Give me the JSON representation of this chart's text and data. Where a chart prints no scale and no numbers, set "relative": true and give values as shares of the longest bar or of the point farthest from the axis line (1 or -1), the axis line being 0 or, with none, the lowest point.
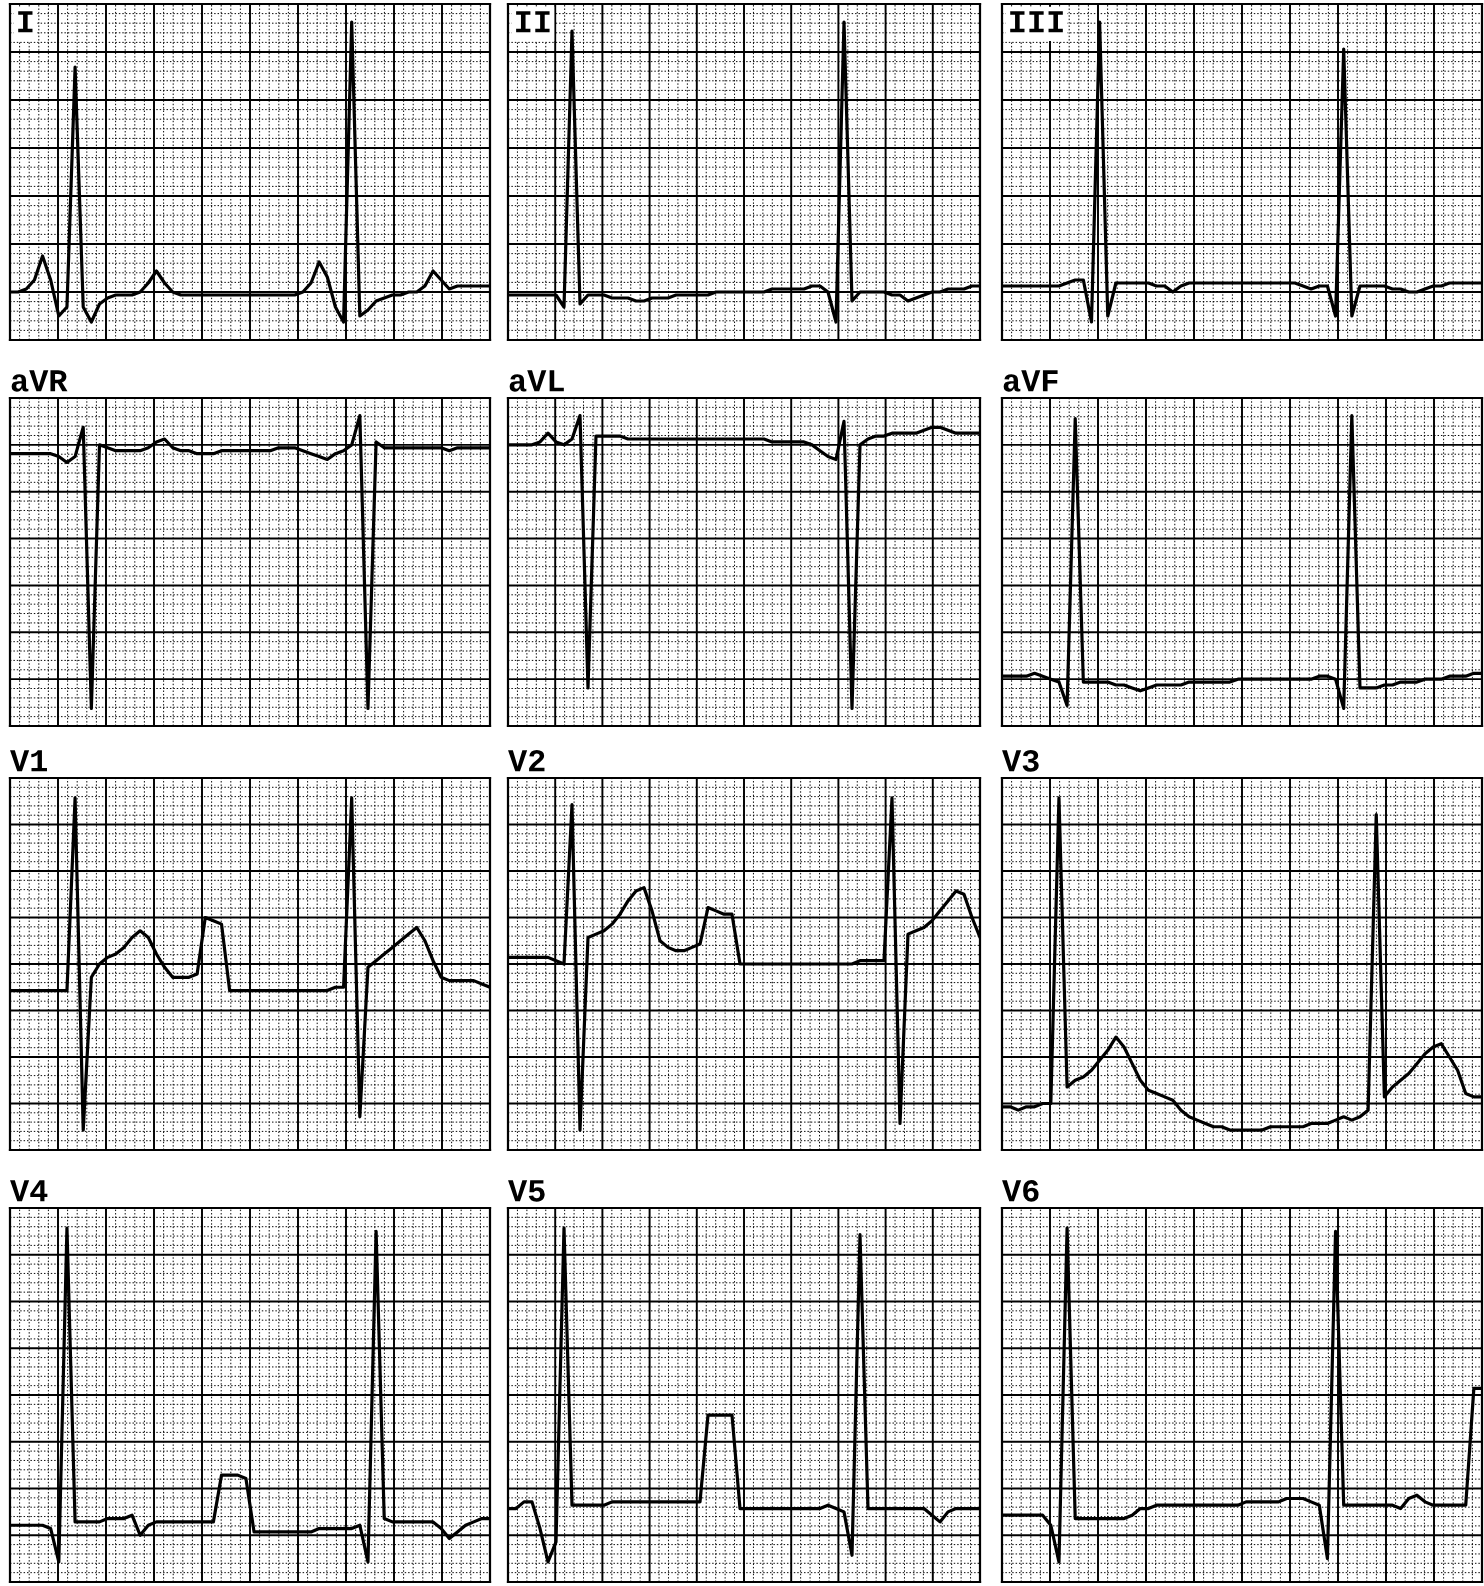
{
  "chart_data": [
    {
      "type": "line",
      "title": "I",
      "relative": true,
      "grid": true,
      "color": "#000000",
      "categories": [
        null,
        null,
        null,
        null,
        null,
        null,
        null,
        null,
        null,
        null,
        null,
        null,
        null,
        null,
        null,
        null,
        null,
        null,
        null,
        null,
        null,
        null,
        null,
        null,
        null,
        null,
        null,
        null,
        null,
        null,
        null,
        null,
        null,
        null,
        null,
        null,
        null,
        null,
        null,
        null,
        null,
        null,
        null,
        null,
        null,
        null,
        null,
        null,
        null,
        null,
        null,
        null,
        null,
        null,
        null,
        null,
        null,
        null,
        null,
        null
      ],
      "values": [
        0.1,
        0.1,
        0.11,
        0.14,
        0.22,
        0.14,
        0.02,
        0.05,
        0.85,
        0.05,
        0.0,
        0.06,
        0.08,
        0.09,
        0.09,
        0.09,
        0.1,
        0.13,
        0.17,
        0.13,
        0.1,
        0.09,
        0.09,
        0.09,
        0.09,
        0.09,
        0.09,
        0.09,
        0.09,
        0.09,
        0.09,
        0.09,
        0.09,
        0.09,
        0.09,
        0.09,
        0.1,
        0.13,
        0.2,
        0.15,
        0.05,
        0.0,
        1.0,
        0.02,
        0.04,
        0.07,
        0.08,
        0.09,
        0.09,
        0.1,
        0.1,
        0.12,
        0.17,
        0.14,
        0.11,
        0.12,
        0.12,
        0.12,
        0.12,
        0.12
      ]
    },
    {
      "type": "line",
      "title": "II",
      "relative": true,
      "grid": true,
      "color": "#000000",
      "categories": [
        null,
        null,
        null,
        null,
        null,
        null,
        null,
        null,
        null,
        null,
        null,
        null,
        null,
        null,
        null,
        null,
        null,
        null,
        null,
        null,
        null,
        null,
        null,
        null,
        null,
        null,
        null,
        null,
        null,
        null,
        null,
        null,
        null,
        null,
        null,
        null,
        null,
        null,
        null,
        null,
        null,
        null,
        null,
        null,
        null,
        null,
        null,
        null,
        null,
        null,
        null,
        null,
        null,
        null,
        null,
        null,
        null,
        null,
        null,
        null
      ],
      "values": [
        0.09,
        0.09,
        0.09,
        0.09,
        0.09,
        0.09,
        0.09,
        0.05,
        0.97,
        0.06,
        0.09,
        0.09,
        0.09,
        0.08,
        0.08,
        0.08,
        0.07,
        0.07,
        0.08,
        0.08,
        0.08,
        0.09,
        0.09,
        0.09,
        0.09,
        0.09,
        0.1,
        0.1,
        0.1,
        0.1,
        0.1,
        0.1,
        0.1,
        0.11,
        0.11,
        0.11,
        0.11,
        0.11,
        0.12,
        0.12,
        0.1,
        0.0,
        1.0,
        0.07,
        0.1,
        0.1,
        0.1,
        0.1,
        0.09,
        0.09,
        0.07,
        0.08,
        0.09,
        0.1,
        0.1,
        0.11,
        0.11,
        0.11,
        0.12,
        0.12
      ]
    },
    {
      "type": "line",
      "title": "III",
      "relative": true,
      "grid": true,
      "color": "#000000",
      "categories": [
        null,
        null,
        null,
        null,
        null,
        null,
        null,
        null,
        null,
        null,
        null,
        null,
        null,
        null,
        null,
        null,
        null,
        null,
        null,
        null,
        null,
        null,
        null,
        null,
        null,
        null,
        null,
        null,
        null,
        null,
        null,
        null,
        null,
        null,
        null,
        null,
        null,
        null,
        null,
        null,
        null,
        null,
        null,
        null,
        null,
        null,
        null,
        null,
        null,
        null,
        null,
        null,
        null,
        null,
        null,
        null,
        null,
        null,
        null,
        null
      ],
      "values": [
        0.12,
        0.12,
        0.12,
        0.12,
        0.12,
        0.12,
        0.12,
        0.12,
        0.13,
        0.14,
        0.14,
        0.0,
        1.0,
        0.02,
        0.13,
        0.13,
        0.13,
        0.13,
        0.13,
        0.12,
        0.12,
        0.1,
        0.12,
        0.13,
        0.13,
        0.13,
        0.13,
        0.13,
        0.13,
        0.13,
        0.13,
        0.13,
        0.13,
        0.13,
        0.13,
        0.13,
        0.13,
        0.12,
        0.11,
        0.12,
        0.12,
        0.02,
        0.91,
        0.02,
        0.12,
        0.12,
        0.12,
        0.12,
        0.11,
        0.11,
        0.1,
        0.1,
        0.11,
        0.12,
        0.12,
        0.13,
        0.13,
        0.13,
        0.13,
        0.13
      ]
    },
    {
      "type": "line",
      "title": "aVR",
      "relative": true,
      "grid": true,
      "color": "#000000",
      "categories": [
        null,
        null,
        null,
        null,
        null,
        null,
        null,
        null,
        null,
        null,
        null,
        null,
        null,
        null,
        null,
        null,
        null,
        null,
        null,
        null,
        null,
        null,
        null,
        null,
        null,
        null,
        null,
        null,
        null,
        null,
        null,
        null,
        null,
        null,
        null,
        null,
        null,
        null,
        null,
        null,
        null,
        null,
        null,
        null,
        null,
        null,
        null,
        null,
        null,
        null,
        null,
        null,
        null,
        null,
        null,
        null,
        null,
        null,
        null,
        null
      ],
      "values": [
        0.87,
        0.87,
        0.87,
        0.87,
        0.87,
        0.87,
        0.86,
        0.84,
        0.86,
        0.96,
        0.0,
        0.9,
        0.89,
        0.88,
        0.88,
        0.88,
        0.88,
        0.89,
        0.91,
        0.92,
        0.89,
        0.88,
        0.88,
        0.87,
        0.87,
        0.87,
        0.88,
        0.88,
        0.88,
        0.88,
        0.88,
        0.88,
        0.88,
        0.89,
        0.89,
        0.89,
        0.88,
        0.87,
        0.86,
        0.85,
        0.87,
        0.88,
        0.9,
        1.0,
        0.0,
        0.91,
        0.89,
        0.89,
        0.89,
        0.89,
        0.89,
        0.89,
        0.89,
        0.89,
        0.88,
        0.89,
        0.89,
        0.89,
        0.89,
        0.89
      ]
    },
    {
      "type": "line",
      "title": "aVL",
      "relative": true,
      "grid": true,
      "color": "#000000",
      "categories": [
        null,
        null,
        null,
        null,
        null,
        null,
        null,
        null,
        null,
        null,
        null,
        null,
        null,
        null,
        null,
        null,
        null,
        null,
        null,
        null,
        null,
        null,
        null,
        null,
        null,
        null,
        null,
        null,
        null,
        null,
        null,
        null,
        null,
        null,
        null,
        null,
        null,
        null,
        null,
        null,
        null,
        null,
        null,
        null,
        null,
        null,
        null,
        null,
        null,
        null,
        null,
        null,
        null,
        null,
        null,
        null,
        null,
        null,
        null,
        null
      ],
      "values": [
        0.9,
        0.9,
        0.9,
        0.9,
        0.91,
        0.94,
        0.91,
        0.9,
        0.92,
        1.0,
        0.07,
        0.93,
        0.93,
        0.93,
        0.93,
        0.92,
        0.92,
        0.92,
        0.92,
        0.92,
        0.92,
        0.92,
        0.92,
        0.92,
        0.92,
        0.92,
        0.92,
        0.92,
        0.92,
        0.92,
        0.92,
        0.92,
        0.92,
        0.91,
        0.91,
        0.91,
        0.91,
        0.91,
        0.9,
        0.88,
        0.86,
        0.85,
        0.98,
        0.0,
        0.9,
        0.92,
        0.93,
        0.93,
        0.94,
        0.94,
        0.94,
        0.94,
        0.95,
        0.96,
        0.96,
        0.95,
        0.94,
        0.94,
        0.94,
        0.94
      ]
    },
    {
      "type": "line",
      "title": "aVF",
      "relative": true,
      "grid": true,
      "color": "#000000",
      "categories": [
        null,
        null,
        null,
        null,
        null,
        null,
        null,
        null,
        null,
        null,
        null,
        null,
        null,
        null,
        null,
        null,
        null,
        null,
        null,
        null,
        null,
        null,
        null,
        null,
        null,
        null,
        null,
        null,
        null,
        null,
        null,
        null,
        null,
        null,
        null,
        null,
        null,
        null,
        null,
        null,
        null,
        null,
        null,
        null,
        null,
        null,
        null,
        null,
        null,
        null,
        null,
        null,
        null,
        null,
        null,
        null,
        null,
        null,
        null,
        null
      ],
      "values": [
        0.11,
        0.11,
        0.11,
        0.11,
        0.12,
        0.11,
        0.1,
        0.09,
        0.01,
        0.99,
        0.09,
        0.09,
        0.09,
        0.09,
        0.08,
        0.08,
        0.07,
        0.06,
        0.07,
        0.08,
        0.08,
        0.08,
        0.08,
        0.09,
        0.09,
        0.09,
        0.09,
        0.09,
        0.09,
        0.1,
        0.1,
        0.1,
        0.1,
        0.1,
        0.1,
        0.1,
        0.1,
        0.1,
        0.1,
        0.11,
        0.11,
        0.1,
        0.0,
        1.0,
        0.07,
        0.07,
        0.07,
        0.08,
        0.08,
        0.09,
        0.09,
        0.09,
        0.1,
        0.1,
        0.1,
        0.11,
        0.11,
        0.11,
        0.12,
        0.12
      ]
    },
    {
      "type": "line",
      "title": "V1",
      "relative": true,
      "grid": true,
      "color": "#000000",
      "categories": [
        null,
        null,
        null,
        null,
        null,
        null,
        null,
        null,
        null,
        null,
        null,
        null,
        null,
        null,
        null,
        null,
        null,
        null,
        null,
        null,
        null,
        null,
        null,
        null,
        null,
        null,
        null,
        null,
        null,
        null,
        null,
        null,
        null,
        null,
        null,
        null,
        null,
        null,
        null,
        null,
        null,
        null,
        null,
        null,
        null,
        null,
        null,
        null,
        null,
        null,
        null,
        null,
        null,
        null,
        null,
        null,
        null,
        null,
        null,
        null
      ],
      "values": [
        0.42,
        0.42,
        0.42,
        0.42,
        0.42,
        0.42,
        0.42,
        0.42,
        1.0,
        0.0,
        0.46,
        0.5,
        0.52,
        0.53,
        0.55,
        0.58,
        0.6,
        0.58,
        0.53,
        0.49,
        0.46,
        0.46,
        0.46,
        0.47,
        0.64,
        0.63,
        0.62,
        0.42,
        0.42,
        0.42,
        0.42,
        0.42,
        0.42,
        0.42,
        0.42,
        0.42,
        0.42,
        0.42,
        0.42,
        0.42,
        0.43,
        0.43,
        1.0,
        0.04,
        0.49,
        0.51,
        0.53,
        0.55,
        0.57,
        0.59,
        0.61,
        0.57,
        0.51,
        0.46,
        0.45,
        0.45,
        0.45,
        0.45,
        0.44,
        0.43
      ]
    },
    {
      "type": "line",
      "title": "V2",
      "relative": true,
      "grid": true,
      "color": "#000000",
      "categories": [
        null,
        null,
        null,
        null,
        null,
        null,
        null,
        null,
        null,
        null,
        null,
        null,
        null,
        null,
        null,
        null,
        null,
        null,
        null,
        null,
        null,
        null,
        null,
        null,
        null,
        null,
        null,
        null,
        null,
        null,
        null,
        null,
        null,
        null,
        null,
        null,
        null,
        null,
        null,
        null,
        null,
        null,
        null,
        null,
        null,
        null,
        null,
        null,
        null,
        null,
        null,
        null,
        null,
        null,
        null,
        null,
        null,
        null,
        null,
        null
      ],
      "values": [
        0.52,
        0.52,
        0.52,
        0.52,
        0.52,
        0.52,
        0.51,
        0.5,
        0.98,
        0.0,
        0.58,
        0.59,
        0.6,
        0.62,
        0.65,
        0.69,
        0.72,
        0.73,
        0.66,
        0.57,
        0.55,
        0.54,
        0.54,
        0.55,
        0.56,
        0.67,
        0.66,
        0.65,
        0.65,
        0.5,
        0.5,
        0.5,
        0.5,
        0.5,
        0.5,
        0.5,
        0.5,
        0.5,
        0.5,
        0.5,
        0.5,
        0.5,
        0.5,
        0.5,
        0.51,
        0.51,
        0.51,
        0.51,
        1.0,
        0.02,
        0.59,
        0.6,
        0.61,
        0.63,
        0.66,
        0.69,
        0.72,
        0.71,
        0.64,
        0.58
      ]
    },
    {
      "type": "line",
      "title": "V3",
      "relative": true,
      "grid": true,
      "color": "#000000",
      "categories": [
        null,
        null,
        null,
        null,
        null,
        null,
        null,
        null,
        null,
        null,
        null,
        null,
        null,
        null,
        null,
        null,
        null,
        null,
        null,
        null,
        null,
        null,
        null,
        null,
        null,
        null,
        null,
        null,
        null,
        null,
        null,
        null,
        null,
        null,
        null,
        null,
        null,
        null,
        null,
        null,
        null,
        null,
        null,
        null,
        null,
        null,
        null,
        null,
        null,
        null,
        null,
        null,
        null,
        null,
        null,
        null,
        null,
        null,
        null,
        null
      ],
      "values": [
        0.07,
        0.07,
        0.06,
        0.07,
        0.07,
        0.08,
        0.08,
        1.0,
        0.13,
        0.15,
        0.16,
        0.18,
        0.21,
        0.24,
        0.28,
        0.25,
        0.2,
        0.15,
        0.12,
        0.11,
        0.1,
        0.09,
        0.06,
        0.04,
        0.03,
        0.02,
        0.01,
        0.01,
        0.0,
        0.0,
        0.0,
        0.0,
        0.0,
        0.01,
        0.01,
        0.01,
        0.01,
        0.01,
        0.02,
        0.02,
        0.02,
        0.03,
        0.04,
        0.03,
        0.04,
        0.06,
        0.95,
        0.1,
        0.13,
        0.15,
        0.17,
        0.2,
        0.23,
        0.25,
        0.26,
        0.22,
        0.18,
        0.11,
        0.1,
        0.1
      ]
    },
    {
      "type": "line",
      "title": "V4",
      "relative": true,
      "grid": true,
      "color": "#000000",
      "categories": [
        null,
        null,
        null,
        null,
        null,
        null,
        null,
        null,
        null,
        null,
        null,
        null,
        null,
        null,
        null,
        null,
        null,
        null,
        null,
        null,
        null,
        null,
        null,
        null,
        null,
        null,
        null,
        null,
        null,
        null,
        null,
        null,
        null,
        null,
        null,
        null,
        null,
        null,
        null,
        null,
        null,
        null,
        null,
        null,
        null,
        null,
        null,
        null,
        null,
        null,
        null,
        null,
        null,
        null,
        null,
        null,
        null,
        null,
        null,
        null
      ],
      "values": [
        0.11,
        0.11,
        0.11,
        0.11,
        0.11,
        0.1,
        0.0,
        1.0,
        0.12,
        0.12,
        0.12,
        0.12,
        0.13,
        0.13,
        0.13,
        0.14,
        0.08,
        0.11,
        0.12,
        0.12,
        0.12,
        0.12,
        0.12,
        0.12,
        0.12,
        0.12,
        0.26,
        0.26,
        0.26,
        0.25,
        0.09,
        0.09,
        0.09,
        0.09,
        0.09,
        0.09,
        0.09,
        0.09,
        0.1,
        0.1,
        0.1,
        0.1,
        0.1,
        0.11,
        0.0,
        0.99,
        0.13,
        0.12,
        0.12,
        0.12,
        0.12,
        0.12,
        0.12,
        0.1,
        0.07,
        0.09,
        0.11,
        0.12,
        0.13,
        0.13
      ]
    },
    {
      "type": "line",
      "title": "V5",
      "relative": true,
      "grid": true,
      "color": "#000000",
      "categories": [
        null,
        null,
        null,
        null,
        null,
        null,
        null,
        null,
        null,
        null,
        null,
        null,
        null,
        null,
        null,
        null,
        null,
        null,
        null,
        null,
        null,
        null,
        null,
        null,
        null,
        null,
        null,
        null,
        null,
        null,
        null,
        null,
        null,
        null,
        null,
        null,
        null,
        null,
        null,
        null,
        null,
        null,
        null,
        null,
        null,
        null,
        null,
        null,
        null,
        null,
        null,
        null,
        null,
        null,
        null,
        null,
        null,
        null,
        null,
        null
      ],
      "values": [
        0.16,
        0.16,
        0.18,
        0.18,
        0.1,
        0.0,
        0.06,
        1.0,
        0.17,
        0.17,
        0.17,
        0.17,
        0.17,
        0.18,
        0.18,
        0.18,
        0.18,
        0.18,
        0.18,
        0.18,
        0.18,
        0.18,
        0.18,
        0.18,
        0.18,
        0.44,
        0.44,
        0.44,
        0.44,
        0.16,
        0.16,
        0.16,
        0.16,
        0.16,
        0.16,
        0.16,
        0.16,
        0.16,
        0.16,
        0.16,
        0.17,
        0.16,
        0.15,
        0.02,
        0.98,
        0.16,
        0.16,
        0.16,
        0.16,
        0.16,
        0.16,
        0.16,
        0.16,
        0.14,
        0.12,
        0.15,
        0.16,
        0.16,
        0.16,
        0.16
      ]
    },
    {
      "type": "line",
      "title": "V6",
      "relative": true,
      "grid": true,
      "color": "#000000",
      "categories": [
        null,
        null,
        null,
        null,
        null,
        null,
        null,
        null,
        null,
        null,
        null,
        null,
        null,
        null,
        null,
        null,
        null,
        null,
        null,
        null,
        null,
        null,
        null,
        null,
        null,
        null,
        null,
        null,
        null,
        null,
        null,
        null,
        null,
        null,
        null,
        null,
        null,
        null,
        null,
        null,
        null,
        null,
        null,
        null,
        null,
        null,
        null,
        null,
        null,
        null,
        null,
        null,
        null,
        null,
        null,
        null,
        null,
        null,
        null,
        null
      ],
      "values": [
        0.14,
        0.14,
        0.14,
        0.14,
        0.14,
        0.14,
        0.11,
        0.0,
        1.0,
        0.13,
        0.13,
        0.13,
        0.13,
        0.13,
        0.13,
        0.13,
        0.14,
        0.16,
        0.16,
        0.17,
        0.17,
        0.17,
        0.17,
        0.17,
        0.17,
        0.17,
        0.17,
        0.17,
        0.17,
        0.17,
        0.18,
        0.18,
        0.18,
        0.18,
        0.18,
        0.19,
        0.19,
        0.19,
        0.18,
        0.17,
        0.01,
        0.99,
        0.17,
        0.17,
        0.17,
        0.17,
        0.17,
        0.17,
        0.17,
        0.16,
        0.19,
        0.2,
        0.18,
        0.17,
        0.17,
        0.17,
        0.17,
        0.17,
        0.52,
        0.52
      ]
    }
  ]
}
